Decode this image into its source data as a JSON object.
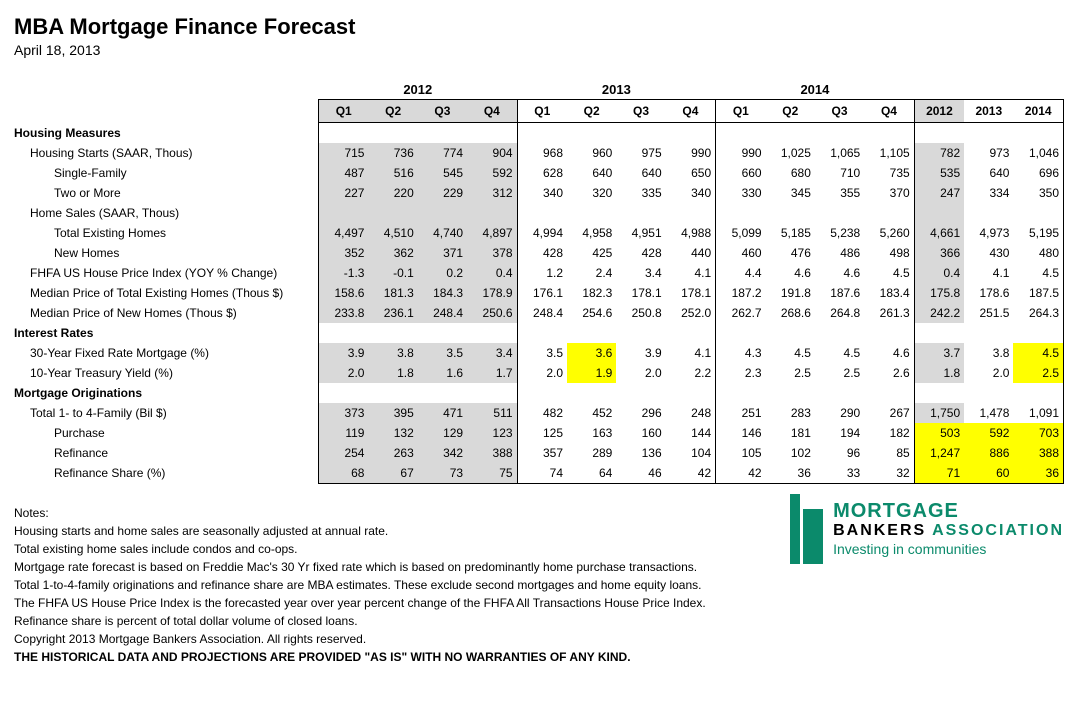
{
  "header": {
    "title": "MBA Mortgage Finance Forecast",
    "date": "April 18, 2013"
  },
  "years": [
    "2012",
    "2013",
    "2014"
  ],
  "quarters": [
    "Q1",
    "Q2",
    "Q3",
    "Q4",
    "Q1",
    "Q2",
    "Q3",
    "Q4",
    "Q1",
    "Q2",
    "Q3",
    "Q4",
    "2012",
    "2013",
    "2014"
  ],
  "shade_cols": [
    0,
    1,
    2,
    3,
    12
  ],
  "highlight": {
    "9": [
      5,
      14
    ],
    "10": [
      5,
      14
    ],
    "13": [
      12,
      13,
      14
    ],
    "14": [
      12,
      13,
      14
    ],
    "15": [
      12,
      13,
      14
    ]
  },
  "rows": [
    {
      "label": "Housing Measures",
      "section": true
    },
    {
      "label": "Housing Starts (SAAR, Thous)",
      "indent": 1,
      "cells": [
        "715",
        "736",
        "774",
        "904",
        "968",
        "960",
        "975",
        "990",
        "990",
        "1,025",
        "1,065",
        "1,105",
        "782",
        "973",
        "1,046"
      ]
    },
    {
      "label": "Single-Family",
      "indent": 2,
      "cells": [
        "487",
        "516",
        "545",
        "592",
        "628",
        "640",
        "640",
        "650",
        "660",
        "680",
        "710",
        "735",
        "535",
        "640",
        "696"
      ]
    },
    {
      "label": "Two or More",
      "indent": 2,
      "cells": [
        "227",
        "220",
        "229",
        "312",
        "340",
        "320",
        "335",
        "340",
        "330",
        "345",
        "355",
        "370",
        "247",
        "334",
        "350"
      ]
    },
    {
      "label": "Home Sales (SAAR, Thous)",
      "indent": 1
    },
    {
      "label": "Total Existing Homes",
      "indent": 2,
      "cells": [
        "4,497",
        "4,510",
        "4,740",
        "4,897",
        "4,994",
        "4,958",
        "4,951",
        "4,988",
        "5,099",
        "5,185",
        "5,238",
        "5,260",
        "4,661",
        "4,973",
        "5,195"
      ]
    },
    {
      "label": "New Homes",
      "indent": 2,
      "cells": [
        "352",
        "362",
        "371",
        "378",
        "428",
        "425",
        "428",
        "440",
        "460",
        "476",
        "486",
        "498",
        "366",
        "430",
        "480"
      ]
    },
    {
      "label": "FHFA US House Price Index (YOY % Change)",
      "indent": 1,
      "cells": [
        "-1.3",
        "-0.1",
        "0.2",
        "0.4",
        "1.2",
        "2.4",
        "3.4",
        "4.1",
        "4.4",
        "4.6",
        "4.6",
        "4.5",
        "0.4",
        "4.1",
        "4.5"
      ]
    },
    {
      "label": "Median Price of Total Existing Homes (Thous $)",
      "indent": 1,
      "cells": [
        "158.6",
        "181.3",
        "184.3",
        "178.9",
        "176.1",
        "182.3",
        "178.1",
        "178.1",
        "187.2",
        "191.8",
        "187.6",
        "183.4",
        "175.8",
        "178.6",
        "187.5"
      ]
    },
    {
      "label": "Median Price of New Homes (Thous $)",
      "indent": 1,
      "cells": [
        "233.8",
        "236.1",
        "248.4",
        "250.6",
        "248.4",
        "254.6",
        "250.8",
        "252.0",
        "262.7",
        "268.6",
        "264.8",
        "261.3",
        "242.2",
        "251.5",
        "264.3"
      ]
    },
    {
      "label": "Interest Rates",
      "section": true
    },
    {
      "label": "30-Year Fixed Rate Mortgage (%)",
      "indent": 1,
      "cells": [
        "3.9",
        "3.8",
        "3.5",
        "3.4",
        "3.5",
        "3.6",
        "3.9",
        "4.1",
        "4.3",
        "4.5",
        "4.5",
        "4.6",
        "3.7",
        "3.8",
        "4.5"
      ]
    },
    {
      "label": "10-Year Treasury Yield (%)",
      "indent": 1,
      "cells": [
        "2.0",
        "1.8",
        "1.6",
        "1.7",
        "2.0",
        "1.9",
        "2.0",
        "2.2",
        "2.3",
        "2.5",
        "2.5",
        "2.6",
        "1.8",
        "2.0",
        "2.5"
      ]
    },
    {
      "label": "Mortgage Originations",
      "section": true
    },
    {
      "label": "Total 1- to 4-Family (Bil $)",
      "indent": 1,
      "cells": [
        "373",
        "395",
        "471",
        "511",
        "482",
        "452",
        "296",
        "248",
        "251",
        "283",
        "290",
        "267",
        "1,750",
        "1,478",
        "1,091"
      ]
    },
    {
      "label": "Purchase",
      "indent": 2,
      "cells": [
        "119",
        "132",
        "129",
        "123",
        "125",
        "163",
        "160",
        "144",
        "146",
        "181",
        "194",
        "182",
        "503",
        "592",
        "703"
      ]
    },
    {
      "label": "Refinance",
      "indent": 2,
      "cells": [
        "254",
        "263",
        "342",
        "388",
        "357",
        "289",
        "136",
        "104",
        "105",
        "102",
        "96",
        "85",
        "1,247",
        "886",
        "388"
      ]
    },
    {
      "label": "Refinance Share (%)",
      "indent": 2,
      "last": true,
      "cells": [
        "68",
        "67",
        "73",
        "75",
        "74",
        "64",
        "46",
        "42",
        "42",
        "36",
        "33",
        "32",
        "71",
        "60",
        "36"
      ]
    }
  ],
  "notes": {
    "heading": "Notes:",
    "lines": [
      "Housing starts and home sales are seasonally adjusted at annual rate.",
      "Total existing home sales include condos and co-ops.",
      "Mortgage rate forecast is based on Freddie Mac's 30 Yr fixed rate which is based on predominantly home purchase transactions.",
      "Total 1-to-4-family originations and refinance share are MBA estimates. These exclude second mortgages and home equity loans.",
      "The FHFA US House Price Index is the forecasted year over year percent change of the FHFA All Transactions House Price Index.",
      "Refinance share is percent of total dollar volume of closed loans.",
      "Copyright 2013 Mortgage Bankers Association.  All rights reserved."
    ],
    "disclaimer": "THE HISTORICAL DATA AND PROJECTIONS ARE PROVIDED \"AS IS\" WITH NO WARRANTIES OF ANY KIND."
  },
  "logo": {
    "line1": "MORTGAGE",
    "line2a": "BANKERS",
    "line2b": "ASSOCIATION",
    "tagline": "Investing in communities"
  },
  "colors": {
    "shade": "#d9d9d9",
    "highlight": "#ffff00",
    "brand": "#0b8a6b"
  }
}
